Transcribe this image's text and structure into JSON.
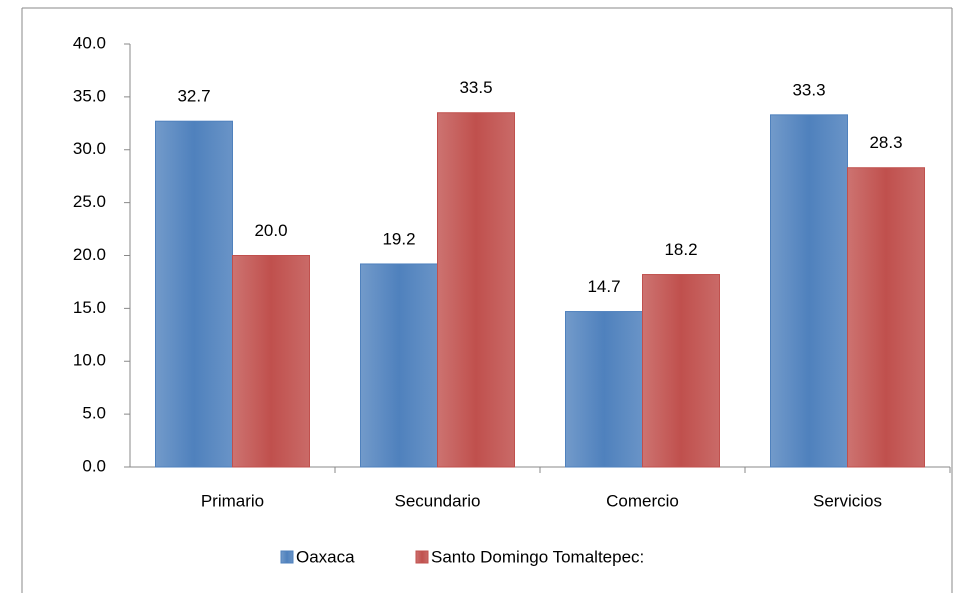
{
  "chart_data": {
    "type": "bar",
    "categories": [
      "Primario",
      "Secundario",
      "Comercio",
      "Servicios"
    ],
    "series": [
      {
        "name": "Oaxaca",
        "color": "#4f81bd",
        "values": [
          32.7,
          19.2,
          14.7,
          33.3
        ],
        "value_labels": [
          "32.7",
          "19.2",
          "14.7",
          "33.3"
        ]
      },
      {
        "name": "Santo Domingo Tomaltepec:",
        "color": "#c0504d",
        "values": [
          20,
          33.5,
          18.2,
          28.3
        ],
        "value_labels": [
          "20.0",
          "33.5",
          "18.2",
          "28.3"
        ]
      }
    ],
    "ylim": [
      0,
      40
    ],
    "yticks": [
      {
        "value": 0,
        "label": "0.0"
      },
      {
        "value": 5,
        "label": "5.0"
      },
      {
        "value": 10,
        "label": "10.0"
      },
      {
        "value": 15,
        "label": "15.0"
      },
      {
        "value": 20,
        "label": "20.0"
      },
      {
        "value": 25,
        "label": "25.0"
      },
      {
        "value": 30,
        "label": "30.0"
      },
      {
        "value": 35,
        "label": "35.0"
      },
      {
        "value": 40,
        "label": "40.0"
      }
    ],
    "legend": "bottom"
  }
}
